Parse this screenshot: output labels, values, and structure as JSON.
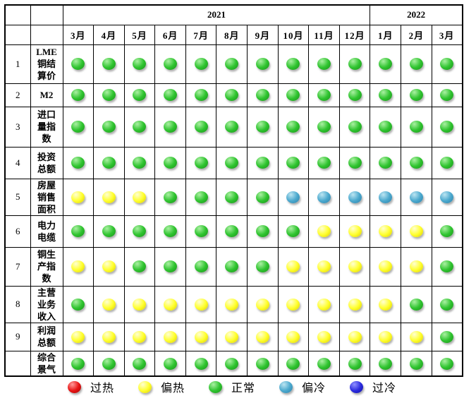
{
  "table": {
    "year_groups": [
      {
        "label": "2021",
        "colspan": 10
      },
      {
        "label": "2022",
        "colspan": 3
      }
    ],
    "month_headers": [
      "3月",
      "4月",
      "5月",
      "6月",
      "7月",
      "8月",
      "9月",
      "10月",
      "11月",
      "12月",
      "1月",
      "2月",
      "3月"
    ],
    "rows": [
      {
        "num": "1",
        "label": "LME\n铜结\n算价",
        "states": [
          "normal",
          "normal",
          "normal",
          "normal",
          "normal",
          "normal",
          "normal",
          "normal",
          "normal",
          "normal",
          "normal",
          "normal",
          "normal"
        ]
      },
      {
        "num": "2",
        "label": "M2",
        "states": [
          "normal",
          "normal",
          "normal",
          "normal",
          "normal",
          "normal",
          "normal",
          "normal",
          "normal",
          "normal",
          "normal",
          "normal",
          "normal"
        ]
      },
      {
        "num": "3",
        "label": "进口\n量指\n数",
        "states": [
          "normal",
          "normal",
          "normal",
          "normal",
          "normal",
          "normal",
          "normal",
          "normal",
          "normal",
          "normal",
          "normal",
          "normal",
          "normal"
        ]
      },
      {
        "num": "4",
        "label": "投资\n总额",
        "states": [
          "normal",
          "normal",
          "normal",
          "normal",
          "normal",
          "normal",
          "normal",
          "normal",
          "normal",
          "normal",
          "normal",
          "normal",
          "normal"
        ]
      },
      {
        "num": "5",
        "label": "房屋\n销售\n面积",
        "states": [
          "warm",
          "warm",
          "warm",
          "normal",
          "normal",
          "normal",
          "normal",
          "cool",
          "cool",
          "cool",
          "cool",
          "cool",
          "cool"
        ]
      },
      {
        "num": "6",
        "label": "电力\n电缆",
        "states": [
          "normal",
          "normal",
          "normal",
          "normal",
          "normal",
          "normal",
          "normal",
          "normal",
          "warm",
          "warm",
          "warm",
          "warm",
          "normal"
        ]
      },
      {
        "num": "7",
        "label": "铜生\n产指\n数",
        "states": [
          "warm",
          "warm",
          "normal",
          "normal",
          "normal",
          "normal",
          "normal",
          "warm",
          "warm",
          "warm",
          "warm",
          "warm",
          "normal"
        ]
      },
      {
        "num": "8",
        "label": "主营\n业务\n收入",
        "states": [
          "normal",
          "warm",
          "warm",
          "warm",
          "warm",
          "warm",
          "warm",
          "warm",
          "warm",
          "warm",
          "warm",
          "normal",
          "normal"
        ]
      },
      {
        "num": "9",
        "label": "利润\n总额",
        "states": [
          "warm",
          "warm",
          "warm",
          "warm",
          "warm",
          "warm",
          "warm",
          "warm",
          "warm",
          "warm",
          "warm",
          "warm",
          "normal"
        ]
      },
      {
        "num": "",
        "label": "综合\n景气",
        "states": [
          "normal",
          "normal",
          "normal",
          "normal",
          "normal",
          "normal",
          "normal",
          "normal",
          "normal",
          "normal",
          "normal",
          "normal",
          "normal"
        ]
      }
    ]
  },
  "legend": [
    {
      "state": "overheated",
      "label": "过热"
    },
    {
      "state": "warm",
      "label": "偏热"
    },
    {
      "state": "normal",
      "label": "正常"
    },
    {
      "state": "cool",
      "label": "偏冷"
    },
    {
      "state": "overcooled",
      "label": "过冷"
    }
  ],
  "state_colors": {
    "overheated": {
      "base": "#e81414",
      "light": "#ff9a9a",
      "dark": "#9e0505"
    },
    "warm": {
      "base": "#ffff2e",
      "light": "#ffffd2",
      "dark": "#d8cc00"
    },
    "normal": {
      "base": "#2fc42f",
      "light": "#aaf0a2",
      "dark": "#1b8f1b"
    },
    "cool": {
      "base": "#4ba9ce",
      "light": "#bce5f2",
      "dark": "#2e7fa6"
    },
    "overcooled": {
      "base": "#2b2bde",
      "light": "#9090ff",
      "dark": "#1111a0"
    }
  },
  "chart_data": {
    "type": "heatmap",
    "title": "",
    "x_groups": [
      {
        "year": "2021",
        "months": [
          "3月",
          "4月",
          "5月",
          "6月",
          "7月",
          "8月",
          "9月",
          "10月",
          "11月",
          "12月"
        ]
      },
      {
        "year": "2022",
        "months": [
          "1月",
          "2月",
          "3月"
        ]
      }
    ],
    "categories": [
      "2021-3月",
      "2021-4月",
      "2021-5月",
      "2021-6月",
      "2021-7月",
      "2021-8月",
      "2021-9月",
      "2021-10月",
      "2021-11月",
      "2021-12月",
      "2022-1月",
      "2022-2月",
      "2022-3月"
    ],
    "value_scale": [
      "过热",
      "偏热",
      "正常",
      "偏冷",
      "过冷"
    ],
    "legend_position": "bottom",
    "series": [
      {
        "name": "LME铜结算价",
        "values": [
          "正常",
          "正常",
          "正常",
          "正常",
          "正常",
          "正常",
          "正常",
          "正常",
          "正常",
          "正常",
          "正常",
          "正常",
          "正常"
        ]
      },
      {
        "name": "M2",
        "values": [
          "正常",
          "正常",
          "正常",
          "正常",
          "正常",
          "正常",
          "正常",
          "正常",
          "正常",
          "正常",
          "正常",
          "正常",
          "正常"
        ]
      },
      {
        "name": "进口量指数",
        "values": [
          "正常",
          "正常",
          "正常",
          "正常",
          "正常",
          "正常",
          "正常",
          "正常",
          "正常",
          "正常",
          "正常",
          "正常",
          "正常"
        ]
      },
      {
        "name": "投资总额",
        "values": [
          "正常",
          "正常",
          "正常",
          "正常",
          "正常",
          "正常",
          "正常",
          "正常",
          "正常",
          "正常",
          "正常",
          "正常",
          "正常"
        ]
      },
      {
        "name": "房屋销售面积",
        "values": [
          "偏热",
          "偏热",
          "偏热",
          "正常",
          "正常",
          "正常",
          "正常",
          "偏冷",
          "偏冷",
          "偏冷",
          "偏冷",
          "偏冷",
          "偏冷"
        ]
      },
      {
        "name": "电力电缆",
        "values": [
          "正常",
          "正常",
          "正常",
          "正常",
          "正常",
          "正常",
          "正常",
          "正常",
          "偏热",
          "偏热",
          "偏热",
          "偏热",
          "正常"
        ]
      },
      {
        "name": "铜生产指数",
        "values": [
          "偏热",
          "偏热",
          "正常",
          "正常",
          "正常",
          "正常",
          "正常",
          "偏热",
          "偏热",
          "偏热",
          "偏热",
          "偏热",
          "正常"
        ]
      },
      {
        "name": "主营业务收入",
        "values": [
          "正常",
          "偏热",
          "偏热",
          "偏热",
          "偏热",
          "偏热",
          "偏热",
          "偏热",
          "偏热",
          "偏热",
          "偏热",
          "正常",
          "正常"
        ]
      },
      {
        "name": "利润总额",
        "values": [
          "偏热",
          "偏热",
          "偏热",
          "偏热",
          "偏热",
          "偏热",
          "偏热",
          "偏热",
          "偏热",
          "偏热",
          "偏热",
          "偏热",
          "正常"
        ]
      },
      {
        "name": "综合景气",
        "values": [
          "正常",
          "正常",
          "正常",
          "正常",
          "正常",
          "正常",
          "正常",
          "正常",
          "正常",
          "正常",
          "正常",
          "正常",
          "正常"
        ]
      }
    ]
  }
}
